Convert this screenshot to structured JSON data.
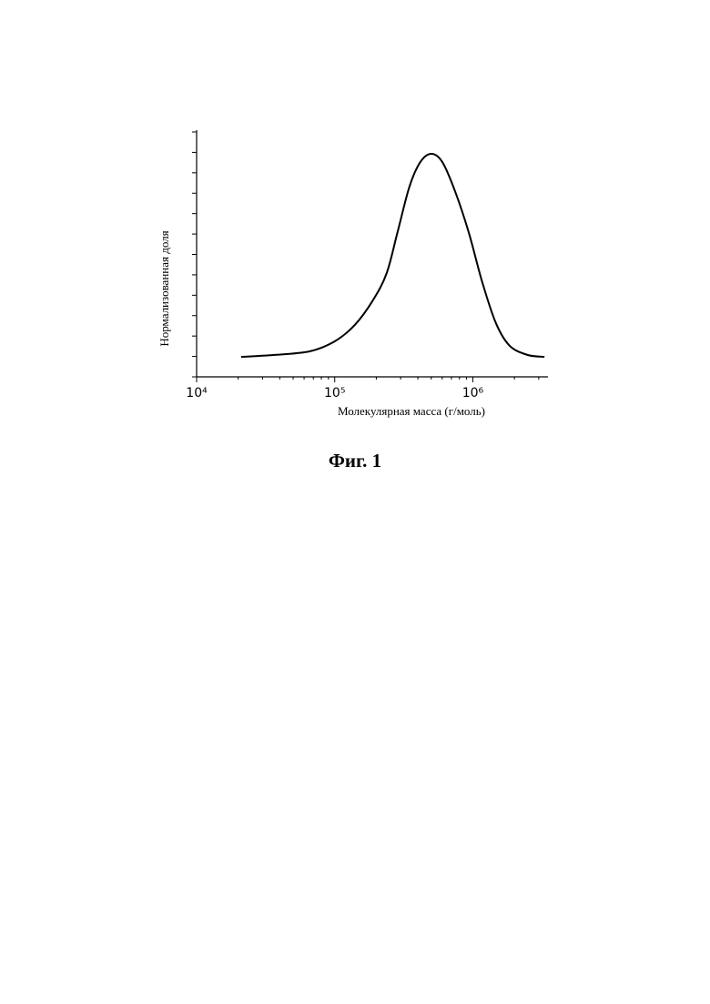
{
  "chart_data": {
    "type": "line",
    "x_label": "Молекулярная масса (г/моль)",
    "y_label": "Нормализованная доля",
    "caption": "Фиг. 1",
    "log_x": true,
    "xlim": [
      10000,
      3500000
    ],
    "xticks": [
      {
        "value": 10000,
        "label": "10⁴"
      },
      {
        "value": 100000,
        "label": "10⁵"
      },
      {
        "value": 1000000,
        "label": "10⁶"
      }
    ],
    "x_minor_ticks": [
      20000,
      30000,
      40000,
      50000,
      60000,
      70000,
      80000,
      90000,
      200000,
      300000,
      400000,
      500000,
      600000,
      700000,
      800000,
      900000,
      2000000,
      3000000
    ],
    "ylim": [
      0,
      12
    ],
    "yticks": [
      0,
      1,
      2,
      3,
      4,
      5,
      6,
      7,
      8,
      9,
      10,
      11,
      12
    ],
    "color": "#000000",
    "x": [
      21000,
      35800,
      65800,
      100000,
      139600,
      189000,
      237700,
      285000,
      347600,
      417000,
      501000,
      601000,
      743000,
      933000,
      1170000,
      1470000,
      1850000,
      2500000,
      3300000
    ],
    "values": [
      0.98,
      1.07,
      1.25,
      1.74,
      2.54,
      3.75,
      5.08,
      7.09,
      9.32,
      10.53,
      10.93,
      10.53,
      9.1,
      7.09,
      4.64,
      2.63,
      1.52,
      1.07,
      0.98
    ]
  }
}
